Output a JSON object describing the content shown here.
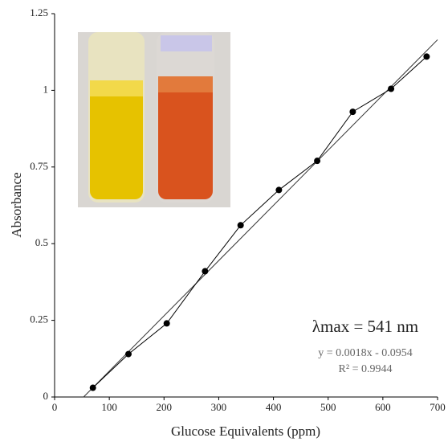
{
  "chart_data": {
    "type": "scatter",
    "x_label": "Glucose Equivalents (ppm)",
    "y_label": "Absorbance",
    "annotations": [
      "λmax = 541 nm",
      "y = 0.0018x - 0.0954",
      "R² = 0.9944"
    ],
    "xlim": [
      0,
      700
    ],
    "xticks": [
      0,
      100,
      200,
      300,
      400,
      500,
      600,
      700
    ],
    "ylim": [
      0,
      1.25
    ],
    "yticks": [
      0,
      0.25,
      0.5,
      0.75,
      1,
      1.25
    ],
    "series": [
      {
        "color": "#000000",
        "x": [
          70,
          135,
          205,
          275,
          340,
          410,
          480,
          545,
          615,
          680
        ],
        "values": [
          0.03,
          0.14,
          0.24,
          0.41,
          0.56,
          0.675,
          0.77,
          0.93,
          1.005,
          1.11
        ]
      }
    ],
    "trendline": {
      "color": "#333333",
      "x": [
        53,
        700
      ],
      "values": [
        0,
        1.165
      ]
    }
  }
}
